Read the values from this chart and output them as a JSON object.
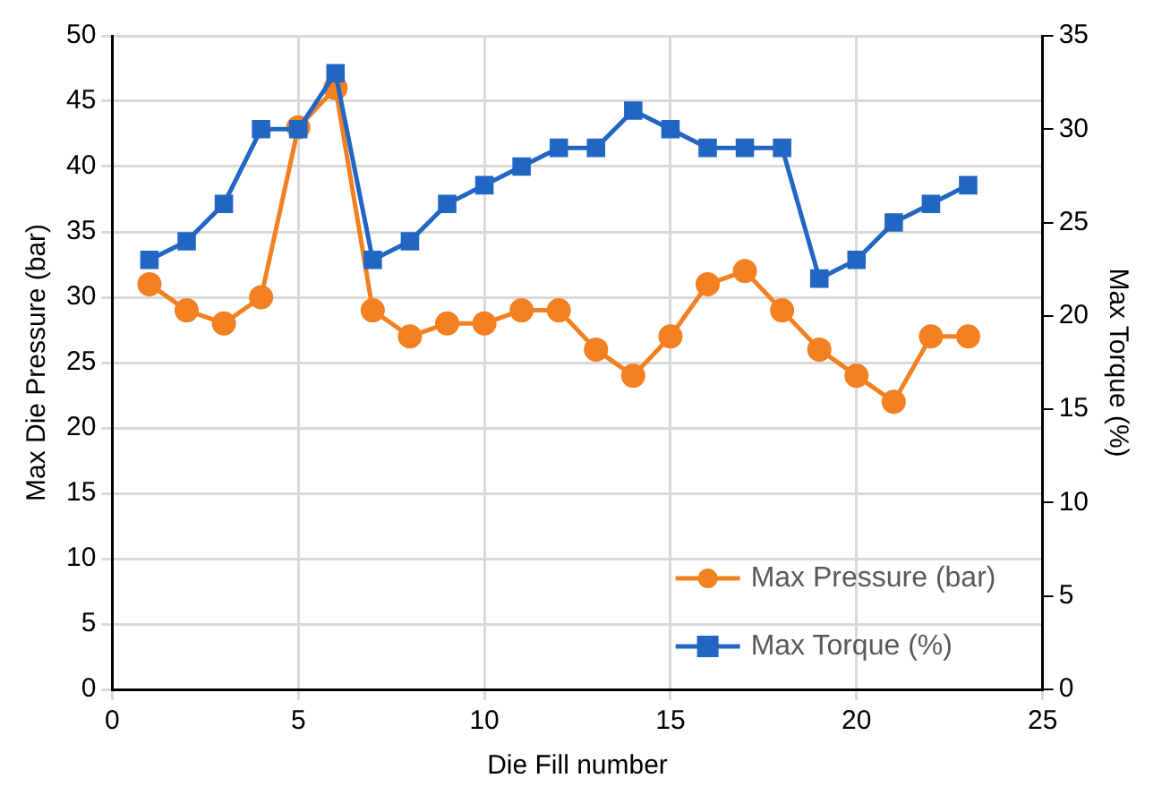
{
  "chart_data": {
    "type": "line",
    "xlabel": "Die Fill number",
    "ylabel": "Max Die Pressure (bar)",
    "y2label": "Max Torque (%)",
    "x": [
      1,
      2,
      3,
      4,
      5,
      6,
      7,
      8,
      9,
      10,
      11,
      12,
      13,
      14,
      15,
      16,
      17,
      18,
      19,
      20,
      21,
      22,
      23
    ],
    "series": [
      {
        "name": "Max Pressure (bar)",
        "color": "#f28021",
        "marker": "circle",
        "values": [
          31,
          29,
          28,
          30,
          43,
          46,
          29,
          27,
          28,
          28,
          29,
          29,
          26,
          24,
          27,
          31,
          32,
          29,
          26,
          24,
          22,
          27,
          27
        ]
      },
      {
        "name": "Max Torque (%)",
        "color": "#2266c4",
        "marker": "square",
        "axis": "y2",
        "values": [
          23,
          24,
          26,
          30,
          30,
          33,
          23,
          24,
          26,
          27,
          28,
          29,
          29,
          31,
          30,
          29,
          29,
          29,
          22,
          23,
          25,
          26,
          27
        ]
      }
    ],
    "xlim": [
      0,
      25
    ],
    "xticks": [
      0,
      5,
      10,
      15,
      20,
      25
    ],
    "ylim": [
      0,
      50
    ],
    "yticks": [
      0,
      5,
      10,
      15,
      20,
      25,
      30,
      35,
      40,
      45,
      50
    ],
    "y2lim": [
      0,
      35
    ],
    "y2ticks": [
      0,
      5,
      10,
      15,
      20,
      25,
      30,
      35
    ],
    "grid": true,
    "legend": "bottom right",
    "line_style": "solid"
  }
}
